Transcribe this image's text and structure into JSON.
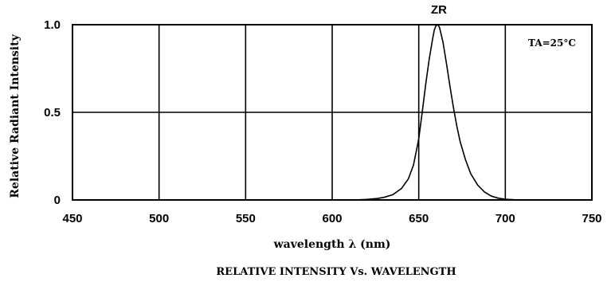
{
  "chart_data": {
    "type": "line",
    "title": "RELATIVE INTENSITY Vs. WAVELENGTH",
    "xlabel": "wavelength  λ (nm)",
    "ylabel": "Relative  Radiant  Intensity",
    "xlim": [
      450,
      750
    ],
    "ylim": [
      0,
      1.0
    ],
    "x_ticks": [
      450,
      500,
      550,
      600,
      650,
      700,
      750
    ],
    "y_ticks": [
      0,
      0.5,
      1.0
    ],
    "x_tick_labels": [
      "450",
      "500",
      "550",
      "600",
      "650",
      "700",
      "750"
    ],
    "y_tick_labels": [
      "0",
      "0.5",
      "1.0"
    ],
    "grid": true,
    "annotations": {
      "peak_label": "ZR",
      "condition": "TA=25°C"
    },
    "series": [
      {
        "name": "ZR",
        "x": [
          612,
          620,
          626,
          630,
          635,
          640,
          644,
          647,
          650,
          652,
          654,
          656,
          658,
          659,
          660,
          661,
          662,
          664,
          666,
          668,
          670,
          672,
          674,
          677,
          680,
          684,
          688,
          692,
          696,
          700,
          704,
          708
        ],
        "y": [
          0.0,
          0.003,
          0.008,
          0.015,
          0.03,
          0.065,
          0.12,
          0.2,
          0.35,
          0.5,
          0.66,
          0.8,
          0.92,
          0.97,
          0.995,
          1.0,
          0.985,
          0.9,
          0.78,
          0.65,
          0.53,
          0.42,
          0.33,
          0.23,
          0.15,
          0.085,
          0.045,
          0.022,
          0.01,
          0.004,
          0.002,
          0.0
        ]
      }
    ],
    "colors": {
      "line": "#000000",
      "grid": "#000000",
      "background": "#ffffff"
    }
  }
}
